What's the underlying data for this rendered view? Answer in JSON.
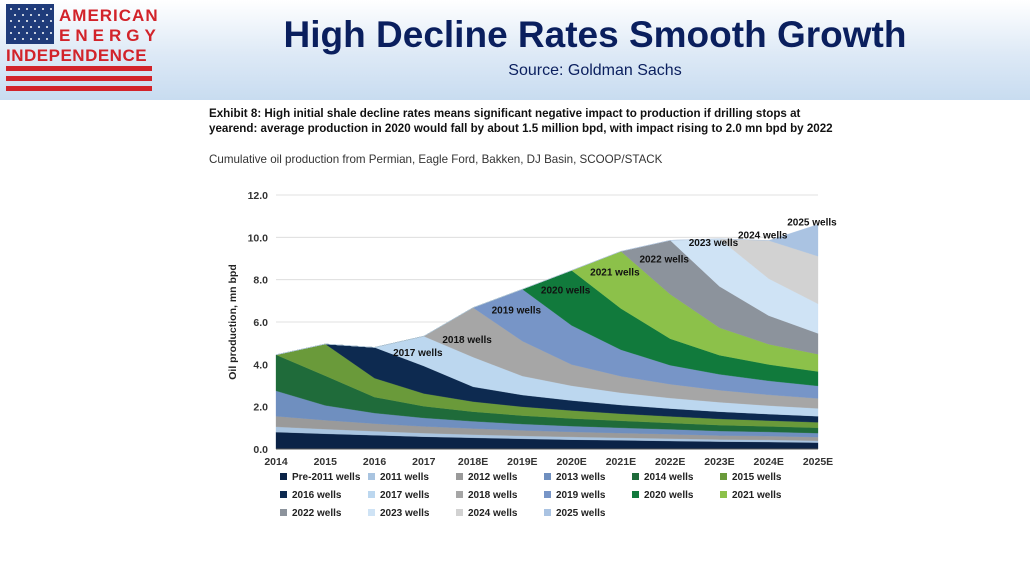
{
  "header": {
    "logo_lines": [
      "AMERICAN",
      "ENERGY",
      "INDEPENDENCE"
    ],
    "title": "High Decline Rates Smooth Growth",
    "source": "Source: Goldman Sachs"
  },
  "exhibit": {
    "title": "Exhibit 8: High initial shale decline rates means significant negative impact to production if drilling stops at yearend: average production in 2020 would fall by about 1.5 million bpd, with impact rising to 2.0 mn bpd by 2022",
    "subtitle": "Cumulative oil production from Permian, Eagle Ford, Bakken, DJ Basin, SCOOP/STACK"
  },
  "chart_data": {
    "type": "area",
    "stacked": true,
    "x": [
      "2014",
      "2015",
      "2016",
      "2017",
      "2018E",
      "2019E",
      "2020E",
      "2021E",
      "2022E",
      "2023E",
      "2024E",
      "2025E"
    ],
    "ylabel": "Oil production, mn bpd",
    "ylim": [
      0,
      12
    ],
    "yticks": [
      "0.0",
      "2.0",
      "4.0",
      "6.0",
      "8.0",
      "10.0",
      "12.0"
    ],
    "grid": true,
    "legend_position": "bottom",
    "series": [
      {
        "name": "Pre-2011 wells",
        "color": "#0b2347",
        "values": [
          0.8,
          0.72,
          0.65,
          0.58,
          0.53,
          0.48,
          0.44,
          0.41,
          0.38,
          0.35,
          0.33,
          0.3
        ]
      },
      {
        "name": "2011 wells",
        "color": "#a9c4e0",
        "values": [
          0.25,
          0.22,
          0.19,
          0.17,
          0.15,
          0.14,
          0.13,
          0.12,
          0.11,
          0.1,
          0.1,
          0.09
        ]
      },
      {
        "name": "2012 wells",
        "color": "#9a9a9a",
        "values": [
          0.5,
          0.42,
          0.36,
          0.32,
          0.29,
          0.26,
          0.24,
          0.22,
          0.21,
          0.19,
          0.18,
          0.17
        ]
      },
      {
        "name": "2013 wells",
        "color": "#6f8fbf",
        "values": [
          1.2,
          0.7,
          0.5,
          0.4,
          0.34,
          0.3,
          0.27,
          0.25,
          0.23,
          0.21,
          0.2,
          0.19
        ]
      },
      {
        "name": "2014 wells",
        "color": "#1f6b3a",
        "values": [
          1.7,
          1.4,
          0.75,
          0.55,
          0.45,
          0.4,
          0.36,
          0.33,
          0.3,
          0.28,
          0.26,
          0.25
        ]
      },
      {
        "name": "2015 wells",
        "color": "#6a9a3a",
        "values": [
          0,
          1.5,
          0.9,
          0.6,
          0.48,
          0.42,
          0.38,
          0.34,
          0.31,
          0.29,
          0.27,
          0.26
        ]
      },
      {
        "name": "2016 wells",
        "color": "#0d2a50",
        "values": [
          0,
          0,
          1.45,
          1.3,
          0.7,
          0.55,
          0.47,
          0.41,
          0.37,
          0.34,
          0.31,
          0.29
        ]
      },
      {
        "name": "2017 wells",
        "color": "#bcd7ef",
        "values": [
          0,
          0,
          0,
          1.41,
          1.4,
          0.9,
          0.7,
          0.58,
          0.5,
          0.45,
          0.4,
          0.37
        ]
      },
      {
        "name": "2018 wells",
        "color": "#a6a6a6",
        "values": [
          0,
          0,
          0,
          0,
          2.34,
          1.65,
          1.0,
          0.78,
          0.65,
          0.57,
          0.51,
          0.47
        ]
      },
      {
        "name": "2019 wells",
        "color": "#7795c7",
        "values": [
          0,
          0,
          0,
          0,
          0,
          2.45,
          1.85,
          1.25,
          0.9,
          0.75,
          0.66,
          0.59
        ]
      },
      {
        "name": "2020 wells",
        "color": "#117a3c",
        "values": [
          0,
          0,
          0,
          0,
          0,
          0,
          2.6,
          1.95,
          1.25,
          0.9,
          0.77,
          0.68
        ]
      },
      {
        "name": "2021 wells",
        "color": "#8cc14a",
        "values": [
          0,
          0,
          0,
          0,
          0,
          0,
          0,
          2.7,
          2.1,
          1.3,
          0.96,
          0.82
        ]
      },
      {
        "name": "2022 wells",
        "color": "#8c939c",
        "values": [
          0,
          0,
          0,
          0,
          0,
          0,
          0,
          0,
          2.55,
          1.95,
          1.35,
          0.98
        ]
      },
      {
        "name": "2023 wells",
        "color": "#cfe3f5",
        "values": [
          0,
          0,
          0,
          0,
          0,
          0,
          0,
          0,
          0,
          2.25,
          1.75,
          1.4
        ]
      },
      {
        "name": "2024 wells",
        "color": "#d2d2d2",
        "values": [
          0,
          0,
          0,
          0,
          0,
          0,
          0,
          0,
          0,
          0,
          1.8,
          2.25
        ]
      },
      {
        "name": "2025 wells",
        "color": "#aac3e2",
        "values": [
          0,
          0,
          0,
          0,
          0,
          0,
          0,
          0,
          0,
          0,
          0,
          1.5
        ]
      }
    ],
    "annotations": [
      {
        "text": "2017 wells",
        "x": "2017",
        "y": 4.4
      },
      {
        "text": "2018 wells",
        "x": "2018E",
        "y": 5.0
      },
      {
        "text": "2019 wells",
        "x": "2019E",
        "y": 6.4
      },
      {
        "text": "2020 wells",
        "x": "2020E",
        "y": 7.35
      },
      {
        "text": "2021 wells",
        "x": "2021E",
        "y": 8.2
      },
      {
        "text": "2022 wells",
        "x": "2022E",
        "y": 8.8
      },
      {
        "text": "2023 wells",
        "x": "2023E",
        "y": 9.6
      },
      {
        "text": "2024 wells",
        "x": "2024E",
        "y": 9.95
      },
      {
        "text": "2025 wells",
        "x": "2025E",
        "y": 10.55
      }
    ]
  }
}
